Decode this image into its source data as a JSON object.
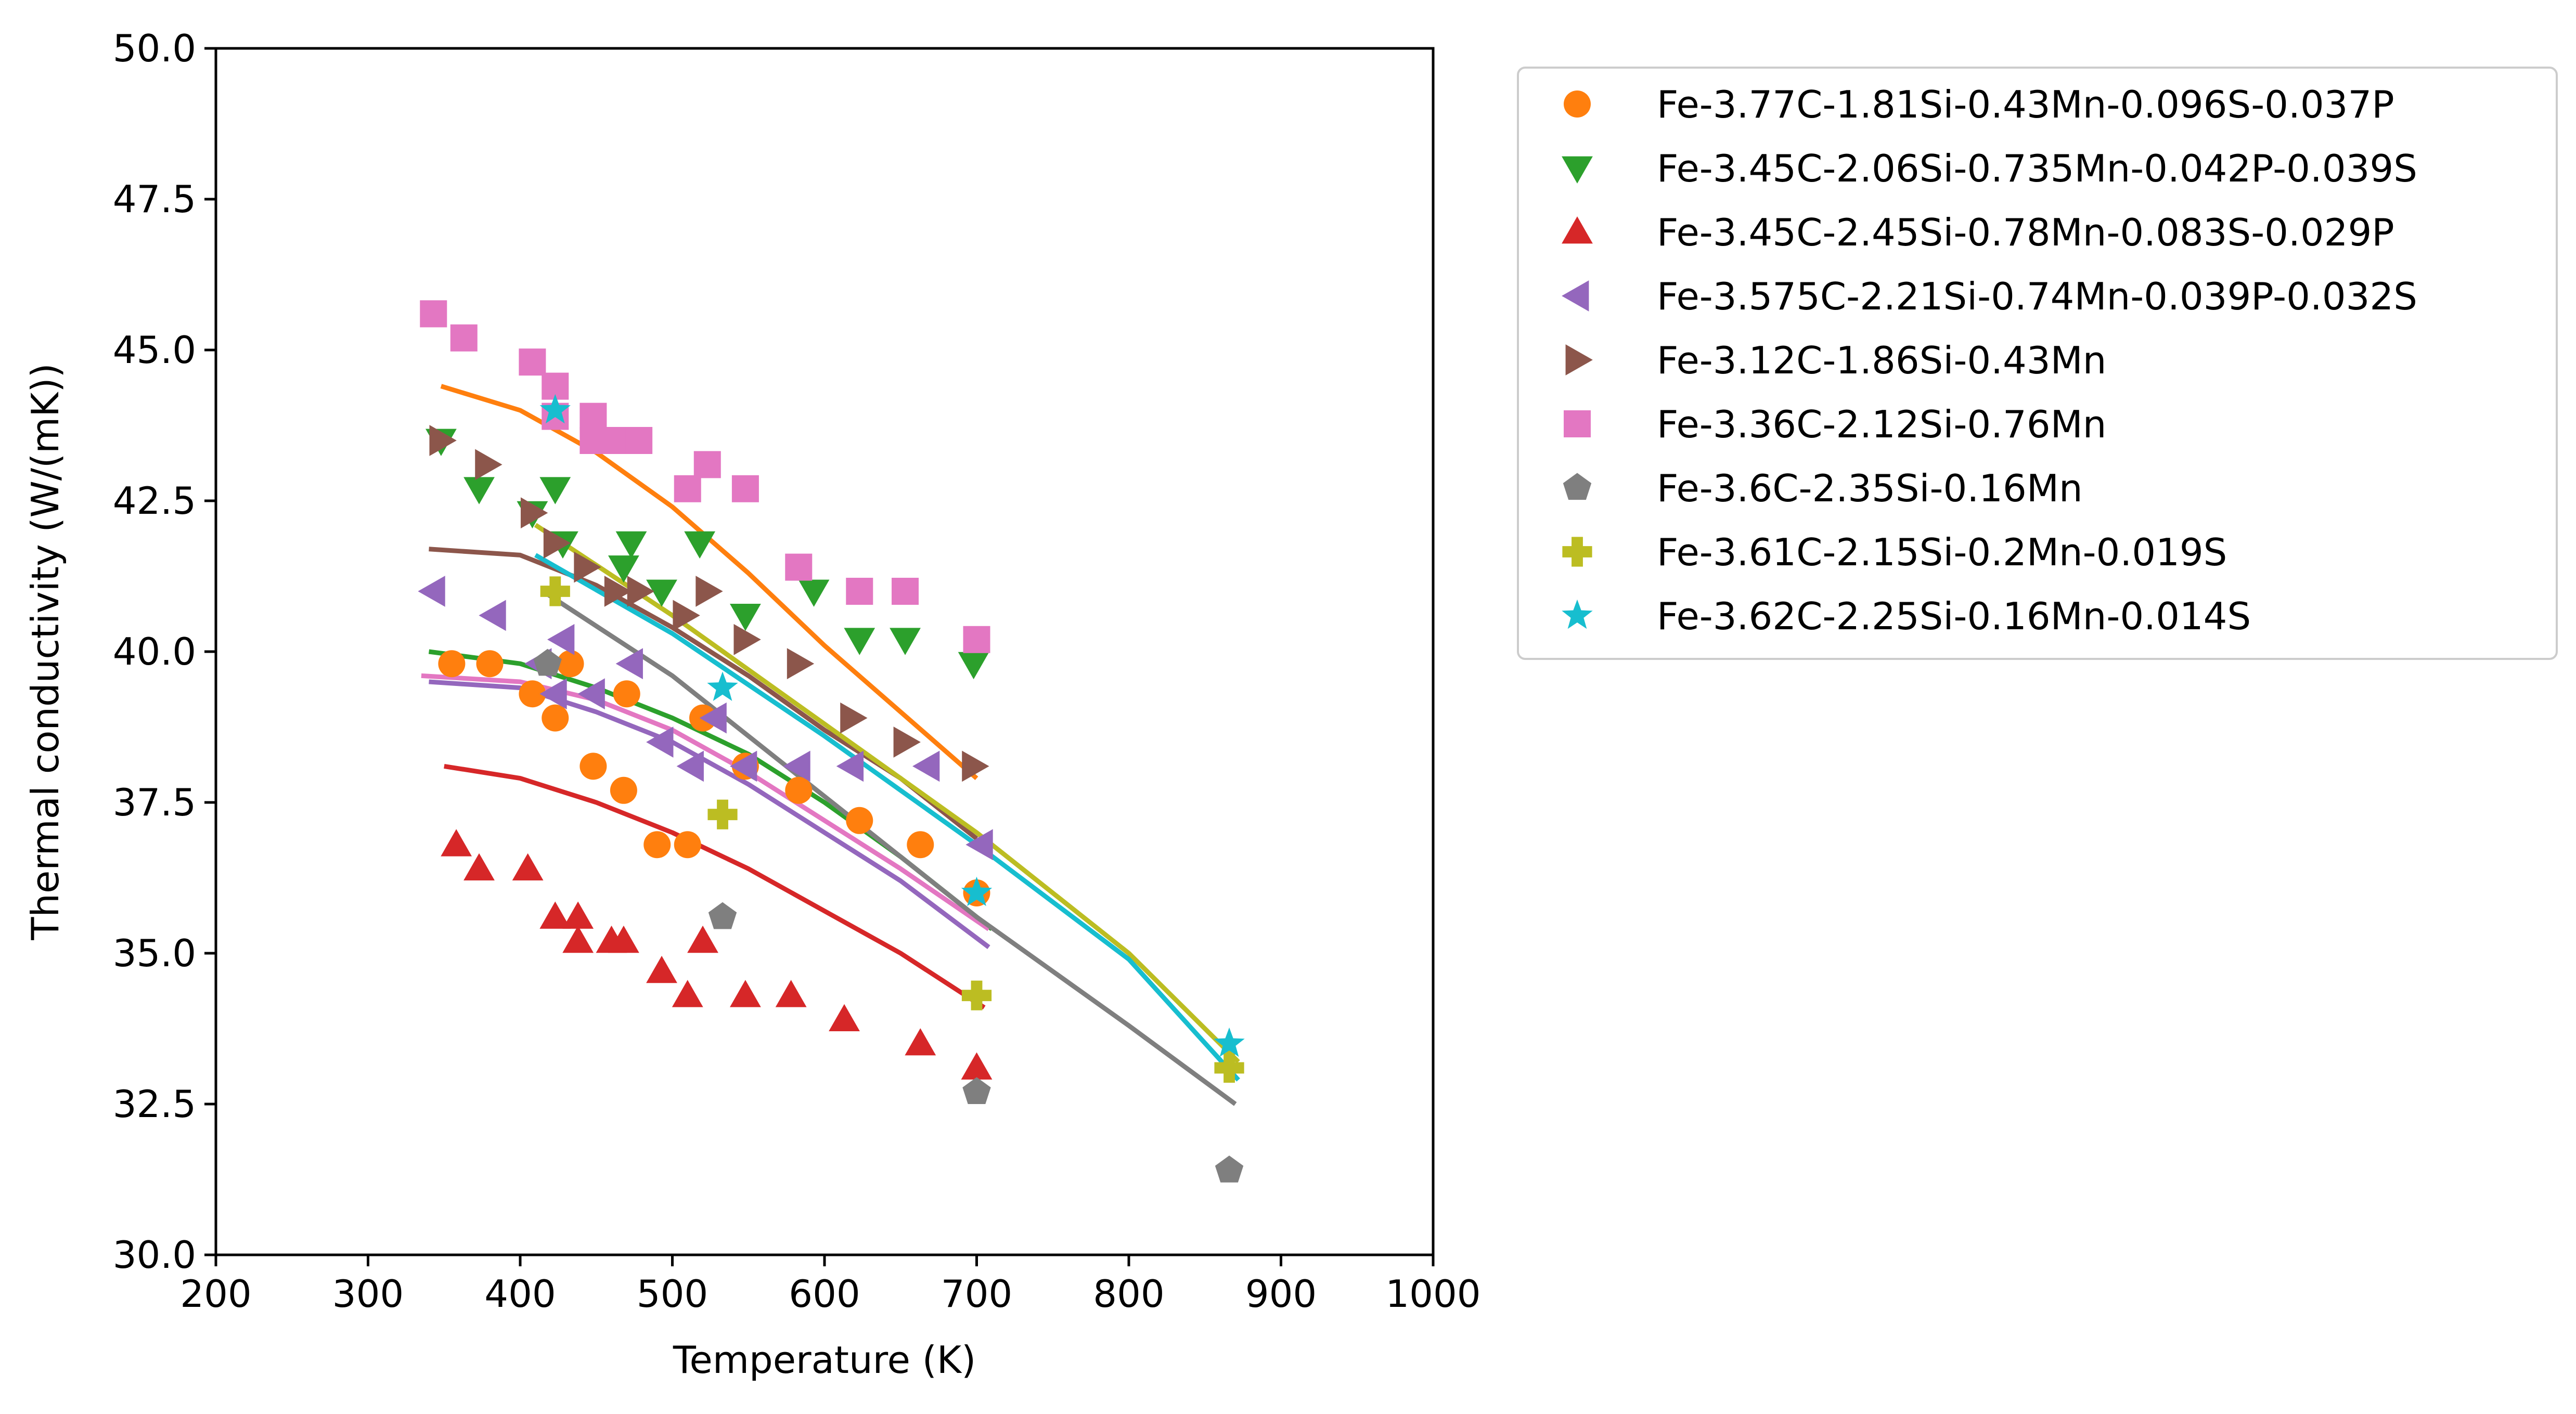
{
  "chart_data": {
    "type": "scatter",
    "xlabel": "Temperature (K)",
    "ylabel": "Thermal conductivity (W/(mK))",
    "xlim": [
      200,
      1000
    ],
    "ylim": [
      30,
      50
    ],
    "xticks": [
      200,
      300,
      400,
      500,
      600,
      700,
      800,
      900,
      1000
    ],
    "xtick_labels": [
      "200",
      "300",
      "400",
      "500",
      "600",
      "700",
      "800",
      "900",
      "1000"
    ],
    "yticks": [
      30,
      32.5,
      35,
      37.5,
      40,
      42.5,
      45,
      47.5,
      50
    ],
    "ytick_labels": [
      "30.0",
      "32.5",
      "35.0",
      "37.5",
      "40.0",
      "42.5",
      "45.0",
      "47.5",
      "50.0"
    ],
    "grid": false,
    "legend_position": "outside-right-top",
    "series": [
      {
        "name": "Fe-3.77C-1.81Si-0.43Mn-0.096S-0.037P",
        "color": "#ff7f0e",
        "marker": "circle",
        "x": [
          355,
          380,
          408,
          423,
          433,
          448,
          468,
          470,
          490,
          510,
          520,
          548,
          583,
          623,
          663,
          700
        ],
        "y": [
          39.8,
          39.8,
          39.3,
          38.9,
          39.8,
          38.1,
          37.7,
          39.3,
          36.8,
          36.8,
          38.9,
          38.1,
          37.7,
          37.2,
          36.8,
          36.0
        ],
        "fit_x": [
          348,
          400,
          450,
          500,
          550,
          600,
          650,
          700
        ],
        "fit_y": [
          44.4,
          44.0,
          43.3,
          42.4,
          41.3,
          40.1,
          39.0,
          37.9
        ]
      },
      {
        "name": "Fe-3.45C-2.06Si-0.735Mn-0.042P-0.039S",
        "color": "#2ca02c",
        "marker": "triangle-down",
        "x": [
          348,
          373,
          408,
          423,
          428,
          468,
          473,
          493,
          518,
          548,
          593,
          623,
          653,
          698
        ],
        "y": [
          43.5,
          42.7,
          42.3,
          42.7,
          41.8,
          41.4,
          41.8,
          41.0,
          41.8,
          40.6,
          41.0,
          40.2,
          40.2,
          39.8
        ],
        "fit_x": [
          340,
          400,
          450,
          500,
          550,
          600,
          650,
          710
        ],
        "fit_y": [
          40.0,
          39.8,
          39.4,
          38.9,
          38.3,
          37.5,
          36.6,
          35.4
        ]
      },
      {
        "name": "Fe-3.45C-2.45Si-0.78Mn-0.083S-0.029P",
        "color": "#d62728",
        "marker": "triangle-up",
        "x": [
          358,
          373,
          405,
          423,
          438,
          438,
          460,
          468,
          493,
          510,
          520,
          548,
          578,
          613,
          663,
          700
        ],
        "y": [
          36.8,
          36.4,
          36.4,
          35.6,
          35.6,
          35.2,
          35.2,
          35.2,
          34.7,
          34.3,
          35.2,
          34.3,
          34.3,
          33.9,
          33.5,
          33.1
        ],
        "fit_x": [
          350,
          400,
          450,
          500,
          550,
          600,
          650,
          705
        ],
        "fit_y": [
          38.1,
          37.9,
          37.5,
          37.0,
          36.4,
          35.7,
          35.0,
          34.1
        ]
      },
      {
        "name": "Fe-3.575C-2.21Si-0.74Mn-0.039P-0.032S",
        "color": "#9467bd",
        "marker": "triangle-left",
        "x": [
          343,
          383,
          413,
          423,
          428,
          448,
          473,
          493,
          513,
          528,
          548,
          583,
          618,
          668,
          703
        ],
        "y": [
          41.0,
          40.6,
          39.8,
          39.3,
          40.2,
          39.3,
          39.8,
          38.5,
          38.1,
          38.9,
          38.1,
          38.1,
          38.1,
          38.1,
          36.8
        ],
        "fit_x": [
          340,
          400,
          450,
          500,
          550,
          600,
          650,
          708
        ],
        "fit_y": [
          39.5,
          39.4,
          39.0,
          38.5,
          37.8,
          37.0,
          36.2,
          35.1
        ]
      },
      {
        "name": "Fe-3.12C-1.86Si-0.43Mn",
        "color": "#8c564b",
        "marker": "triangle-right",
        "x": [
          348,
          378,
          408,
          423,
          443,
          463,
          478,
          508,
          523,
          548,
          583,
          618,
          653,
          698
        ],
        "y": [
          43.5,
          43.1,
          42.3,
          41.8,
          41.4,
          41.0,
          41.0,
          40.6,
          41.0,
          40.2,
          39.8,
          38.9,
          38.5,
          38.1
        ],
        "fit_x": [
          340,
          400,
          450,
          500,
          550,
          600,
          650,
          700
        ],
        "fit_y": [
          41.7,
          41.6,
          41.1,
          40.4,
          39.6,
          38.7,
          37.9,
          36.9
        ]
      },
      {
        "name": "Fe-3.36C-2.12Si-0.76Mn",
        "color": "#e377c2",
        "marker": "square",
        "x": [
          343,
          363,
          408,
          423,
          423,
          448,
          448,
          458,
          468,
          478,
          510,
          523,
          548,
          583,
          623,
          653,
          700
        ],
        "y": [
          45.6,
          45.2,
          44.8,
          44.4,
          43.9,
          43.9,
          43.5,
          43.5,
          43.5,
          43.5,
          42.7,
          43.1,
          42.7,
          41.4,
          41.0,
          41.0,
          40.2
        ],
        "fit_x": [
          335,
          400,
          450,
          500,
          550,
          600,
          650,
          708
        ],
        "fit_y": [
          39.6,
          39.5,
          39.2,
          38.7,
          38.0,
          37.2,
          36.4,
          35.4
        ]
      },
      {
        "name": "Fe-3.6C-2.35Si-0.16Mn",
        "color": "#7f7f7f",
        "marker": "pentagon",
        "x": [
          418,
          533,
          700,
          866
        ],
        "y": [
          39.8,
          35.6,
          32.7,
          31.4
        ],
        "fit_x": [
          415,
          500,
          600,
          700,
          800,
          870
        ],
        "fit_y": [
          41.0,
          39.6,
          37.6,
          35.6,
          33.8,
          32.5
        ]
      },
      {
        "name": "Fe-3.61C-2.15Si-0.2Mn-0.019S",
        "color": "#bcbd22",
        "marker": "plus",
        "x": [
          423,
          533,
          700,
          866
        ],
        "y": [
          41.0,
          37.3,
          34.3,
          33.1
        ],
        "fit_x": [
          410,
          500,
          600,
          700,
          800,
          872
        ],
        "fit_y": [
          42.1,
          40.6,
          38.8,
          37.0,
          35.0,
          33.2
        ]
      },
      {
        "name": "Fe-3.62C-2.25Si-0.16Mn-0.014S",
        "color": "#17becf",
        "marker": "star",
        "x": [
          423,
          533,
          700,
          866
        ],
        "y": [
          44.0,
          39.4,
          36.0,
          33.5
        ],
        "fit_x": [
          410,
          500,
          600,
          700,
          800,
          872
        ],
        "fit_y": [
          41.6,
          40.3,
          38.6,
          36.8,
          34.9,
          32.9
        ]
      }
    ]
  }
}
